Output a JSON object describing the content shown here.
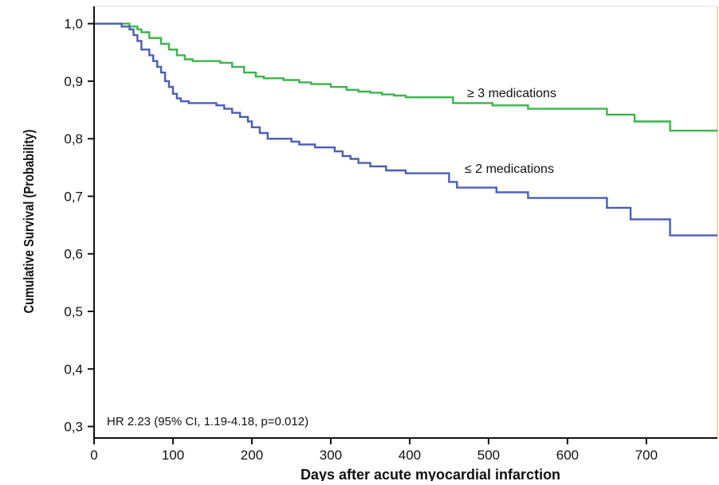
{
  "chart_data": {
    "type": "line",
    "step": true,
    "xlabel": "Days after acute myocardial infarction",
    "ylabel": "Cumulative Survival (Probability)",
    "xlim": [
      0,
      790
    ],
    "ylim": [
      0.28,
      1.03
    ],
    "x_ticks": [
      0,
      100,
      200,
      300,
      400,
      500,
      600,
      700
    ],
    "x_tick_labels": [
      "0",
      "100",
      "200",
      "300",
      "400",
      "500",
      "600",
      "700"
    ],
    "y_ticks": [
      0.3,
      0.4,
      0.5,
      0.6,
      0.7,
      0.8,
      0.9,
      1.0
    ],
    "y_tick_labels": [
      "0,3",
      "0,4",
      "0,5",
      "0,6",
      "0,7",
      "0,8",
      "0,9",
      "1,0"
    ],
    "grid": false,
    "annotation": "HR 2.23 (95% CI, 1.19-4.18, p=0.012)",
    "series": [
      {
        "name": "≥ 3 medications",
        "color": "#3cb44b",
        "points": [
          [
            0,
            1.0
          ],
          [
            40,
            1.0
          ],
          [
            45,
            0.995
          ],
          [
            55,
            0.99
          ],
          [
            60,
            0.985
          ],
          [
            70,
            0.975
          ],
          [
            85,
            0.965
          ],
          [
            95,
            0.955
          ],
          [
            105,
            0.945
          ],
          [
            115,
            0.938
          ],
          [
            125,
            0.935
          ],
          [
            160,
            0.932
          ],
          [
            175,
            0.925
          ],
          [
            190,
            0.915
          ],
          [
            205,
            0.908
          ],
          [
            215,
            0.905
          ],
          [
            240,
            0.902
          ],
          [
            260,
            0.898
          ],
          [
            275,
            0.895
          ],
          [
            300,
            0.89
          ],
          [
            320,
            0.885
          ],
          [
            335,
            0.882
          ],
          [
            350,
            0.88
          ],
          [
            365,
            0.877
          ],
          [
            380,
            0.875
          ],
          [
            395,
            0.872
          ],
          [
            455,
            0.862
          ],
          [
            505,
            0.858
          ],
          [
            550,
            0.852
          ],
          [
            650,
            0.842
          ],
          [
            685,
            0.83
          ],
          [
            730,
            0.814
          ],
          [
            790,
            0.814
          ]
        ]
      },
      {
        "name": "≤ 2 medications",
        "color": "#4a5db5",
        "points": [
          [
            0,
            1.0
          ],
          [
            30,
            1.0
          ],
          [
            35,
            0.995
          ],
          [
            45,
            0.99
          ],
          [
            50,
            0.98
          ],
          [
            55,
            0.97
          ],
          [
            60,
            0.955
          ],
          [
            70,
            0.945
          ],
          [
            75,
            0.935
          ],
          [
            80,
            0.925
          ],
          [
            85,
            0.915
          ],
          [
            90,
            0.9
          ],
          [
            95,
            0.89
          ],
          [
            100,
            0.878
          ],
          [
            105,
            0.87
          ],
          [
            110,
            0.865
          ],
          [
            120,
            0.862
          ],
          [
            155,
            0.858
          ],
          [
            165,
            0.852
          ],
          [
            175,
            0.845
          ],
          [
            185,
            0.838
          ],
          [
            195,
            0.83
          ],
          [
            200,
            0.82
          ],
          [
            210,
            0.81
          ],
          [
            220,
            0.8
          ],
          [
            250,
            0.795
          ],
          [
            260,
            0.79
          ],
          [
            280,
            0.785
          ],
          [
            305,
            0.778
          ],
          [
            315,
            0.77
          ],
          [
            325,
            0.765
          ],
          [
            335,
            0.758
          ],
          [
            350,
            0.752
          ],
          [
            370,
            0.745
          ],
          [
            395,
            0.74
          ],
          [
            450,
            0.725
          ],
          [
            460,
            0.715
          ],
          [
            510,
            0.707
          ],
          [
            550,
            0.697
          ],
          [
            650,
            0.68
          ],
          [
            680,
            0.66
          ],
          [
            730,
            0.632
          ],
          [
            790,
            0.632
          ]
        ]
      }
    ]
  }
}
